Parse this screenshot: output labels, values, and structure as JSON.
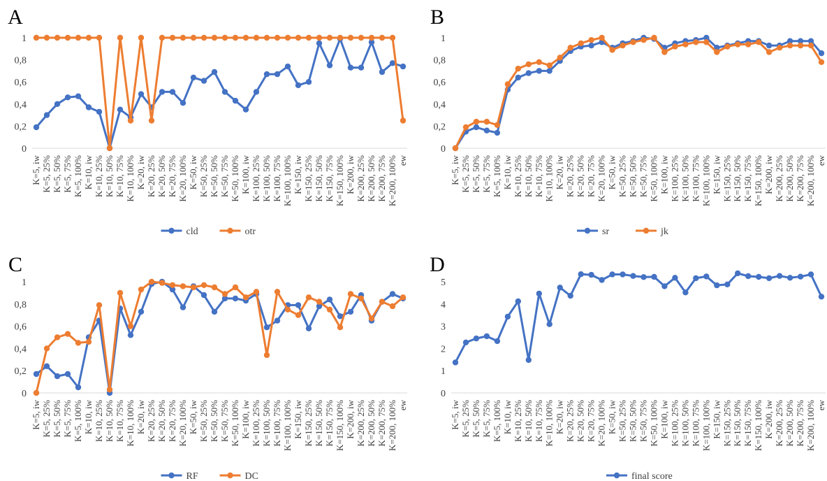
{
  "chart_data": [
    {
      "panel": "A",
      "type": "line",
      "categories": [
        "K=5, iw",
        "K=5, 25%",
        "K=5, 50%",
        "K=5, 75%",
        "K=5, 100%",
        "K=10, iw",
        "K=10, 25%",
        "K=10, 50%",
        "K=10, 75%",
        "K=10, 100%",
        "K=20, iw",
        "K=20, 25%",
        "K=20, 50%",
        "K=20, 75%",
        "K=20, 100%",
        "K=50, iw",
        "K=50, 25%",
        "K=50, 50%",
        "K=50, 75%",
        "K=50, 100%",
        "K=100, iw",
        "K=100, 25%",
        "K=100, 50%",
        "K=100, 75%",
        "K=100, 100%",
        "K=150, iw",
        "K=150, 25%",
        "K=150, 50%",
        "K=150, 75%",
        "K=150, 100%",
        "K=200, iw",
        "K=200, 25%",
        "K=200, 50%",
        "K=200, 75%",
        "K=200, 100%",
        "ew"
      ],
      "ylim": [
        0,
        1
      ],
      "yticks": [
        "0",
        "0,2",
        "0,4",
        "0,6",
        "0,8",
        "1"
      ],
      "grid": false,
      "legend_position": "bottom",
      "series": [
        {
          "name": "cld",
          "color": "#4472C4",
          "values": [
            0.19,
            0.3,
            0.4,
            0.46,
            0.47,
            0.37,
            0.33,
            0.0,
            0.35,
            0.28,
            0.49,
            0.37,
            0.51,
            0.51,
            0.41,
            0.64,
            0.61,
            0.69,
            0.51,
            0.43,
            0.35,
            0.51,
            0.67,
            0.67,
            0.74,
            0.57,
            0.6,
            0.95,
            0.75,
            0.99,
            0.73,
            0.73,
            0.96,
            0.69,
            0.77,
            0.74
          ]
        },
        {
          "name": "otr",
          "color": "#ED7D31",
          "values": [
            1,
            1,
            1,
            1,
            1,
            1,
            1,
            0.0,
            1,
            0.25,
            1,
            0.25,
            1,
            1,
            1,
            1,
            1,
            1,
            1,
            1,
            1,
            1,
            1,
            1,
            1,
            1,
            1,
            1,
            1,
            1,
            1,
            1,
            1,
            1,
            1,
            0.25
          ]
        }
      ]
    },
    {
      "panel": "B",
      "type": "line",
      "categories": [
        "K=5, iw",
        "K=5, 25%",
        "K=5, 50%",
        "K=5, 75%",
        "K=5, 100%",
        "K=10, iw",
        "K=10, 25%",
        "K=10, 50%",
        "K=10, 75%",
        "K=10, 100%",
        "K=20, iw",
        "K=20, 25%",
        "K=20, 50%",
        "K=20, 75%",
        "K=20, 100%",
        "K=50, iw",
        "K=50, 25%",
        "K=50, 50%",
        "K=50, 75%",
        "K=50, 100%",
        "K=100, iw",
        "K=100, 25%",
        "K=100, 50%",
        "K=100, 75%",
        "K=100, 100%",
        "K=150, iw",
        "K=150, 25%",
        "K=150, 50%",
        "K=150, 75%",
        "K=150, 100%",
        "K=200, iw",
        "K=200, 25%",
        "K=200, 50%",
        "K=200, 75%",
        "K=200, 100%",
        "ew"
      ],
      "ylim": [
        0,
        1
      ],
      "yticks": [
        "0",
        "0,2",
        "0,4",
        "0,6",
        "0,8",
        "1"
      ],
      "grid": false,
      "legend_position": "bottom",
      "series": [
        {
          "name": "sr",
          "color": "#4472C4",
          "values": [
            0.0,
            0.15,
            0.19,
            0.16,
            0.14,
            0.53,
            0.64,
            0.68,
            0.7,
            0.7,
            0.79,
            0.88,
            0.92,
            0.93,
            0.96,
            0.91,
            0.95,
            0.97,
            1.0,
            0.99,
            0.91,
            0.95,
            0.97,
            0.98,
            1.0,
            0.91,
            0.93,
            0.95,
            0.97,
            0.97,
            0.93,
            0.93,
            0.97,
            0.97,
            0.97,
            0.86
          ]
        },
        {
          "name": "jk",
          "color": "#ED7D31",
          "values": [
            0.0,
            0.19,
            0.24,
            0.24,
            0.21,
            0.58,
            0.72,
            0.76,
            0.78,
            0.75,
            0.82,
            0.91,
            0.95,
            0.98,
            1.0,
            0.89,
            0.93,
            0.96,
            0.98,
            1.0,
            0.87,
            0.92,
            0.94,
            0.96,
            0.96,
            0.87,
            0.92,
            0.94,
            0.94,
            0.96,
            0.87,
            0.91,
            0.93,
            0.93,
            0.93,
            0.78
          ]
        }
      ]
    },
    {
      "panel": "C",
      "type": "line",
      "categories": [
        "K=5, iw",
        "K=5, 25%",
        "K=5, 50%",
        "K=5, 75%",
        "K=5, 100%",
        "K=10, iw",
        "K=10, 25%",
        "K=10, 50%",
        "K=10, 75%",
        "K=10, 100%",
        "K=20, iw",
        "K=20, 25%",
        "K=20, 50%",
        "K=20, 75%",
        "K=20, 100%",
        "K=50, iw",
        "K=50, 25%",
        "K=50, 50%",
        "K=50, 75%",
        "K=50, 100%",
        "K=100, iw",
        "K=100, 25%",
        "K=100, 50%",
        "K=100, 75%",
        "K=100, 100%",
        "K=150, iw",
        "K=150, 25%",
        "K=150, 50%",
        "K=150, 75%",
        "K=150, 100%",
        "K=200, iw",
        "K=200, 25%",
        "K=200, 50%",
        "K=200, 75%",
        "K=200, 100%",
        "ew"
      ],
      "ylim": [
        0,
        1
      ],
      "yticks": [
        "0",
        "0,2",
        "0,4",
        "0,6",
        "0,8",
        "1"
      ],
      "grid": false,
      "legend_position": "bottom",
      "series": [
        {
          "name": "RF",
          "color": "#4472C4",
          "values": [
            0.17,
            0.24,
            0.15,
            0.17,
            0.05,
            0.5,
            0.65,
            0.0,
            0.76,
            0.52,
            0.73,
            0.98,
            1.0,
            0.93,
            0.77,
            0.96,
            0.88,
            0.73,
            0.85,
            0.85,
            0.83,
            0.89,
            0.59,
            0.65,
            0.79,
            0.79,
            0.58,
            0.78,
            0.84,
            0.69,
            0.73,
            0.88,
            0.65,
            0.82,
            0.89,
            0.85
          ]
        },
        {
          "name": "DC",
          "color": "#ED7D31",
          "values": [
            0.0,
            0.4,
            0.5,
            0.53,
            0.45,
            0.46,
            0.79,
            0.03,
            0.9,
            0.6,
            0.93,
            1.0,
            0.99,
            0.97,
            0.96,
            0.95,
            0.97,
            0.95,
            0.89,
            0.95,
            0.86,
            0.91,
            0.34,
            0.91,
            0.75,
            0.7,
            0.86,
            0.82,
            0.75,
            0.59,
            0.89,
            0.85,
            0.67,
            0.82,
            0.78,
            0.86
          ]
        }
      ]
    },
    {
      "panel": "D",
      "type": "line",
      "categories": [
        "K=5, iw",
        "K=5, 25%",
        "K=5, 50%",
        "K=5, 75%",
        "K=5, 100%",
        "K=10, iw",
        "K=10, 25%",
        "K=10, 50%",
        "K=10, 75%",
        "K=10, 100%",
        "K=20, iw",
        "K=20, 25%",
        "K=20, 50%",
        "K=20, 75%",
        "K=20, 100%",
        "K=50, iw",
        "K=50, 25%",
        "K=50, 50%",
        "K=50, 75%",
        "K=50, 100%",
        "K=100, iw",
        "K=100, 25%",
        "K=100, 50%",
        "K=100, 75%",
        "K=100, 100%",
        "K=150, iw",
        "K=150, 25%",
        "K=150, 50%",
        "K=150, 75%",
        "K=150, 100%",
        "K=200, iw",
        "K=200, 25%",
        "K=200, 50%",
        "K=200, 75%",
        "K=200, 100%",
        "ew"
      ],
      "ylim": [
        0,
        5
      ],
      "yticks": [
        "0",
        "1",
        "2",
        "3",
        "4",
        "5"
      ],
      "grid": false,
      "legend_position": "bottom",
      "series": [
        {
          "name": "final score",
          "color": "#4472C4",
          "values": [
            1.37,
            2.27,
            2.45,
            2.55,
            2.33,
            3.43,
            4.12,
            1.48,
            4.47,
            3.09,
            4.74,
            4.37,
            5.34,
            5.31,
            5.08,
            5.33,
            5.33,
            5.26,
            5.21,
            5.22,
            4.8,
            5.18,
            4.52,
            5.16,
            5.24,
            4.84,
            4.88,
            5.38,
            5.25,
            5.22,
            5.16,
            5.26,
            5.18,
            5.23,
            5.33,
            4.33
          ]
        }
      ]
    }
  ]
}
